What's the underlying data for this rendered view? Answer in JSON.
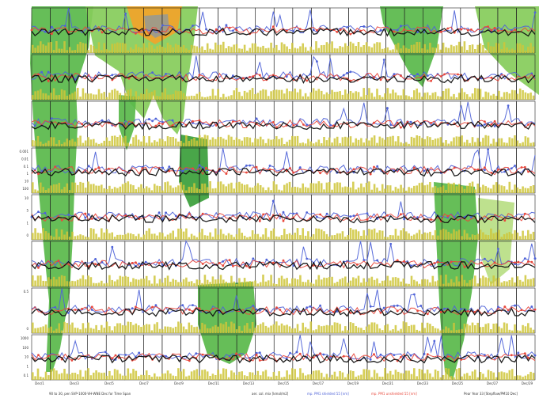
{
  "figure": {
    "background": "#ffffff",
    "land_colors": {
      "dark_green": "#3a9e3a",
      "green": "#59b84a",
      "light_green": "#86cc5a",
      "pale_green": "#b9de84",
      "orange": "#f2a32a",
      "grey": "#9a9a8e"
    },
    "series_colors": {
      "black": "#111111",
      "red": "#e8483c",
      "blue": "#4f63d8",
      "olive": "#cfc63a"
    }
  },
  "chart_data": {
    "type": "line",
    "description_of_encoding": "",
    "rows": 8,
    "columns": 27,
    "x_ticks": [
      "Dec/1",
      "Dec/3",
      "Dec/5",
      "Dec/7",
      "Dec/9",
      "Dec/11",
      "Dec/13",
      "Dec/15",
      "Dec/17",
      "Dec/19",
      "Dec/21",
      "Dec/23",
      "Dec/25",
      "Dec/27",
      "Dec/29"
    ],
    "y_ticks_row4": [
      "0.001",
      "0.01",
      "0.1",
      "1",
      "10",
      "100"
    ],
    "y_ticks_row5": [
      "10",
      "5",
      "1",
      "0"
    ],
    "y_ticks_row7": [
      "0.5",
      "0"
    ],
    "y_ticks_row8": [
      "1000",
      "100",
      "10",
      "1",
      "0.1"
    ],
    "series": [
      {
        "color": "#111111",
        "style": "line"
      },
      {
        "color": "#e8483c",
        "style": "line-points"
      },
      {
        "color": "#4f63d8",
        "style": "line-points"
      },
      {
        "color": "#cfc63a",
        "style": "bars"
      }
    ],
    "legend_placement": "bottom",
    "grid": true
  },
  "footer": {
    "left": "90 to 30, pen SVP-1000-VH-WNE Dec for Time Span",
    "middle": "aer. col. mix [kmol/m2]",
    "blue_label": "mp. PM1 shielded 55 [nm]",
    "red_label": "mp. PM1 unshielded 55 [nm]",
    "right": "Pear Year 33 [Stepflow/PM10 Dec]"
  }
}
